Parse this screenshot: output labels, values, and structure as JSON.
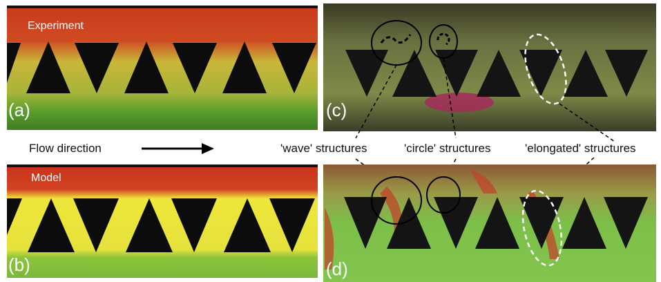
{
  "panels": {
    "a": {
      "label": "(a)",
      "tag": "Experiment"
    },
    "b": {
      "label": "(b)",
      "tag": "Model"
    },
    "c": {
      "label": "(c)"
    },
    "d": {
      "label": "(d)"
    }
  },
  "flow": "Flow direction",
  "annotations": [
    "'wave' structures",
    "'circle' structures",
    "'elongated' structures"
  ]
}
